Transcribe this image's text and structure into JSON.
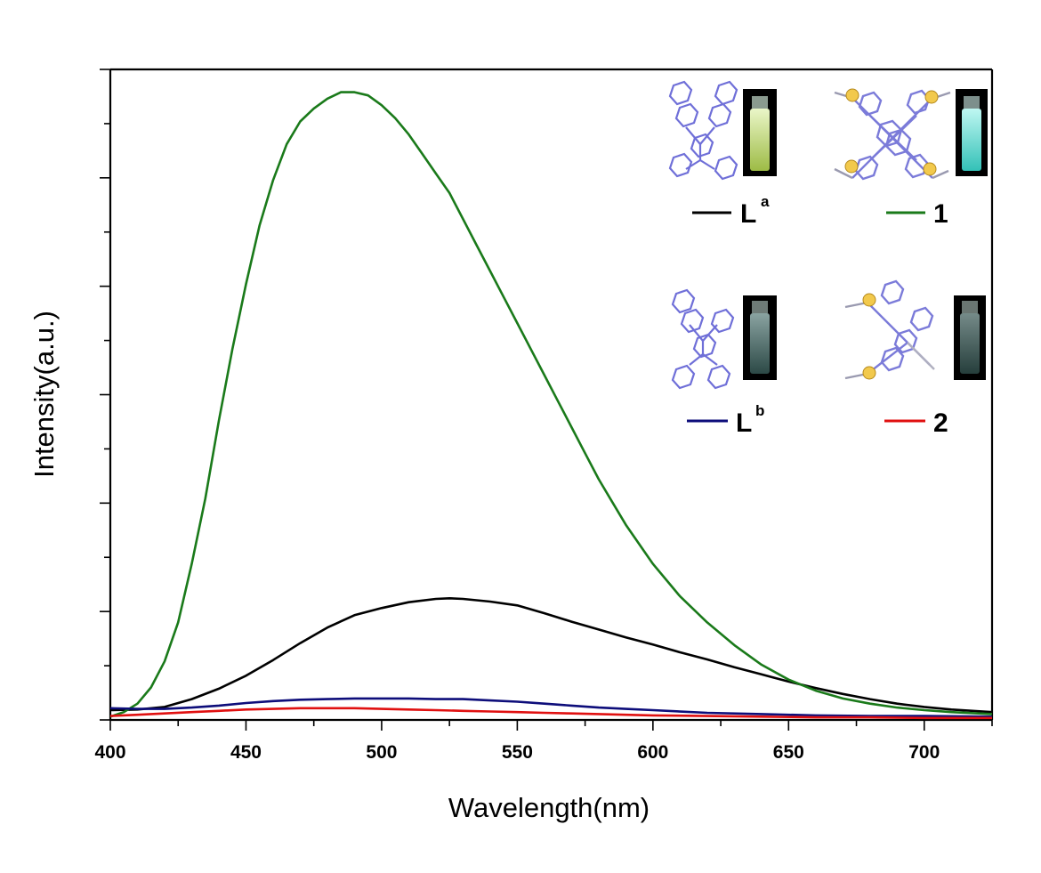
{
  "chart_data": {
    "type": "line",
    "title": "",
    "xlabel": "Wavelength(nm)",
    "ylabel": "Intensity(a.u.)",
    "xlim": [
      400,
      725
    ],
    "ylim": [
      0,
      1
    ],
    "x_ticks": [
      400,
      450,
      500,
      550,
      600,
      650,
      700
    ],
    "y_tick_labels": "none",
    "grid": false,
    "legend_placement": "top-right (inside, 2x2 with molecule structures and vial photos)",
    "series": [
      {
        "name": "L",
        "name_sup": "a",
        "color": "#000000",
        "points": [
          [
            400,
            0.015
          ],
          [
            410,
            0.016
          ],
          [
            420,
            0.02
          ],
          [
            430,
            0.032
          ],
          [
            440,
            0.048
          ],
          [
            450,
            0.068
          ],
          [
            460,
            0.092
          ],
          [
            470,
            0.118
          ],
          [
            480,
            0.142
          ],
          [
            490,
            0.161
          ],
          [
            500,
            0.172
          ],
          [
            510,
            0.181
          ],
          [
            520,
            0.186
          ],
          [
            525,
            0.187
          ],
          [
            530,
            0.186
          ],
          [
            540,
            0.182
          ],
          [
            550,
            0.176
          ],
          [
            560,
            0.164
          ],
          [
            570,
            0.151
          ],
          [
            580,
            0.139
          ],
          [
            590,
            0.127
          ],
          [
            600,
            0.116
          ],
          [
            610,
            0.104
          ],
          [
            620,
            0.093
          ],
          [
            630,
            0.081
          ],
          [
            640,
            0.07
          ],
          [
            650,
            0.059
          ],
          [
            660,
            0.049
          ],
          [
            670,
            0.04
          ],
          [
            680,
            0.032
          ],
          [
            690,
            0.025
          ],
          [
            700,
            0.02
          ],
          [
            710,
            0.016
          ],
          [
            725,
            0.012
          ]
        ]
      },
      {
        "name": "1",
        "color": "#1a7a1a",
        "points": [
          [
            400,
            0.005
          ],
          [
            405,
            0.012
          ],
          [
            410,
            0.025
          ],
          [
            415,
            0.05
          ],
          [
            420,
            0.09
          ],
          [
            425,
            0.15
          ],
          [
            430,
            0.24
          ],
          [
            435,
            0.34
          ],
          [
            440,
            0.46
          ],
          [
            445,
            0.57
          ],
          [
            450,
            0.67
          ],
          [
            455,
            0.76
          ],
          [
            460,
            0.83
          ],
          [
            465,
            0.885
          ],
          [
            470,
            0.92
          ],
          [
            475,
            0.94
          ],
          [
            480,
            0.955
          ],
          [
            485,
            0.965
          ],
          [
            490,
            0.965
          ],
          [
            495,
            0.96
          ],
          [
            500,
            0.945
          ],
          [
            505,
            0.925
          ],
          [
            510,
            0.9
          ],
          [
            515,
            0.87
          ],
          [
            520,
            0.84
          ],
          [
            525,
            0.81
          ],
          [
            530,
            0.77
          ],
          [
            535,
            0.73
          ],
          [
            540,
            0.69
          ],
          [
            545,
            0.65
          ],
          [
            550,
            0.61
          ],
          [
            555,
            0.57
          ],
          [
            560,
            0.53
          ],
          [
            565,
            0.49
          ],
          [
            570,
            0.45
          ],
          [
            575,
            0.41
          ],
          [
            580,
            0.37
          ],
          [
            585,
            0.335
          ],
          [
            590,
            0.3
          ],
          [
            600,
            0.24
          ],
          [
            610,
            0.19
          ],
          [
            620,
            0.15
          ],
          [
            630,
            0.115
          ],
          [
            640,
            0.085
          ],
          [
            650,
            0.062
          ],
          [
            660,
            0.045
          ],
          [
            670,
            0.033
          ],
          [
            680,
            0.025
          ],
          [
            690,
            0.019
          ],
          [
            700,
            0.015
          ],
          [
            710,
            0.012
          ],
          [
            725,
            0.009
          ]
        ]
      },
      {
        "name": "L",
        "name_sup": "b",
        "color": "#0d0d7a",
        "points": [
          [
            400,
            0.018
          ],
          [
            410,
            0.017
          ],
          [
            420,
            0.017
          ],
          [
            430,
            0.019
          ],
          [
            440,
            0.022
          ],
          [
            450,
            0.026
          ],
          [
            460,
            0.029
          ],
          [
            470,
            0.031
          ],
          [
            480,
            0.032
          ],
          [
            490,
            0.033
          ],
          [
            500,
            0.033
          ],
          [
            510,
            0.033
          ],
          [
            520,
            0.032
          ],
          [
            530,
            0.032
          ],
          [
            540,
            0.03
          ],
          [
            550,
            0.028
          ],
          [
            560,
            0.025
          ],
          [
            570,
            0.022
          ],
          [
            580,
            0.019
          ],
          [
            590,
            0.017
          ],
          [
            600,
            0.015
          ],
          [
            620,
            0.011
          ],
          [
            640,
            0.009
          ],
          [
            660,
            0.007
          ],
          [
            680,
            0.006
          ],
          [
            700,
            0.006
          ],
          [
            725,
            0.005
          ]
        ]
      },
      {
        "name": "2",
        "color": "#e01010",
        "points": [
          [
            400,
            0.006
          ],
          [
            410,
            0.008
          ],
          [
            420,
            0.01
          ],
          [
            430,
            0.012
          ],
          [
            440,
            0.014
          ],
          [
            450,
            0.016
          ],
          [
            460,
            0.017
          ],
          [
            470,
            0.018
          ],
          [
            480,
            0.018
          ],
          [
            490,
            0.018
          ],
          [
            500,
            0.017
          ],
          [
            510,
            0.016
          ],
          [
            520,
            0.015
          ],
          [
            530,
            0.014
          ],
          [
            540,
            0.013
          ],
          [
            550,
            0.012
          ],
          [
            560,
            0.011
          ],
          [
            570,
            0.01
          ],
          [
            580,
            0.009
          ],
          [
            600,
            0.007
          ],
          [
            620,
            0.006
          ],
          [
            640,
            0.005
          ],
          [
            660,
            0.004
          ],
          [
            680,
            0.004
          ],
          [
            700,
            0.003
          ],
          [
            725,
            0.003
          ]
        ]
      }
    ]
  }
}
